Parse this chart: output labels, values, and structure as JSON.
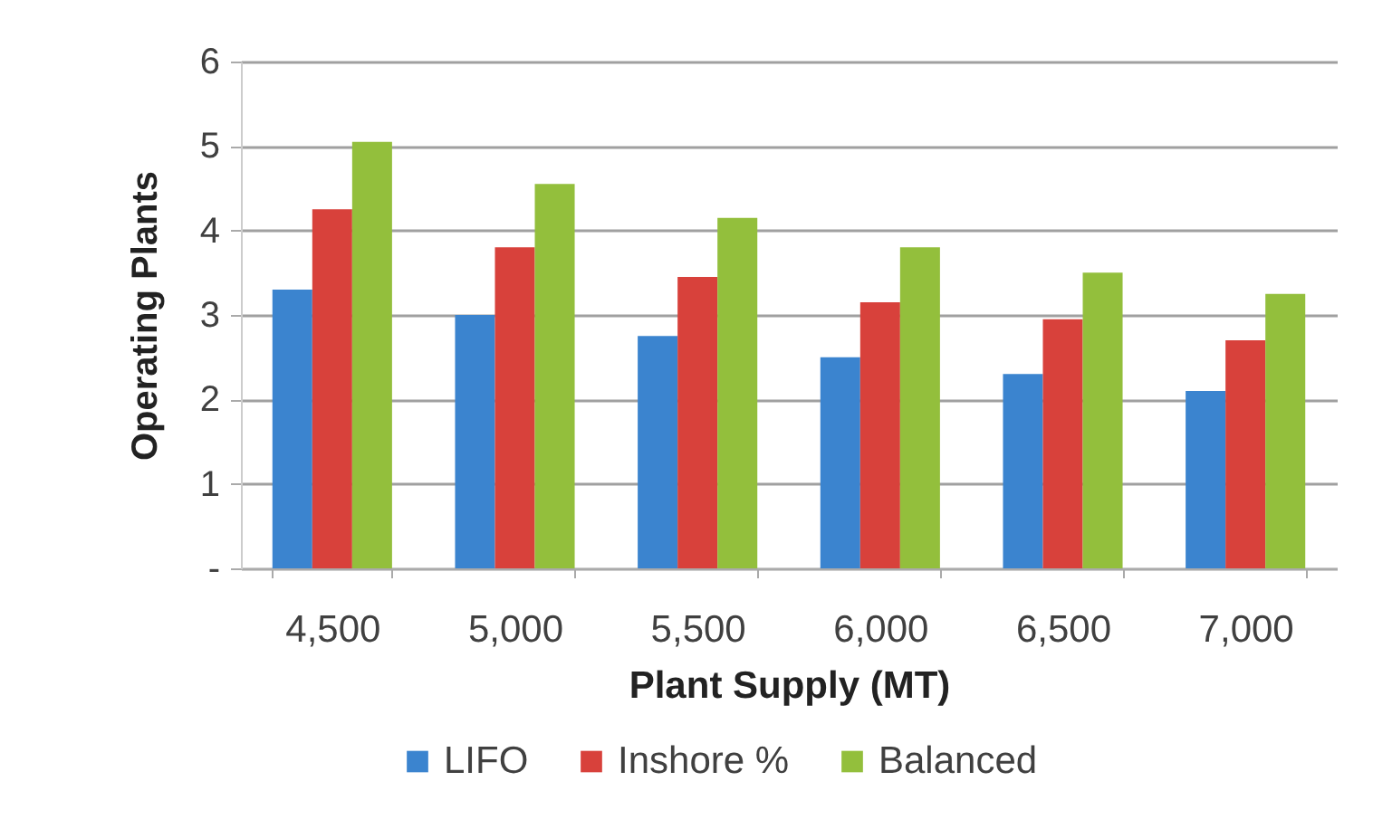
{
  "chart_data": {
    "type": "bar",
    "xlabel": "Plant Supply (MT)",
    "ylabel": "Operating Plants",
    "categories": [
      "4,500",
      "5,000",
      "5,500",
      "6,000",
      "6,500",
      "7,000"
    ],
    "series": [
      {
        "name": "LIFO",
        "color": "#3b84cf",
        "values": [
          3.3,
          3.0,
          2.75,
          2.5,
          2.3,
          2.1
        ]
      },
      {
        "name": "Inshore %",
        "color": "#d8413b",
        "values": [
          4.25,
          3.8,
          3.45,
          3.15,
          2.95,
          2.7
        ]
      },
      {
        "name": "Balanced",
        "color": "#93bf3c",
        "values": [
          5.05,
          4.55,
          4.15,
          3.8,
          3.5,
          3.25
        ]
      }
    ],
    "ylim": [
      0,
      6
    ],
    "yticks": [
      {
        "value": 0,
        "label": "-"
      },
      1,
      2,
      3,
      4,
      5,
      6
    ],
    "grid": "y",
    "legend": "bottom"
  }
}
